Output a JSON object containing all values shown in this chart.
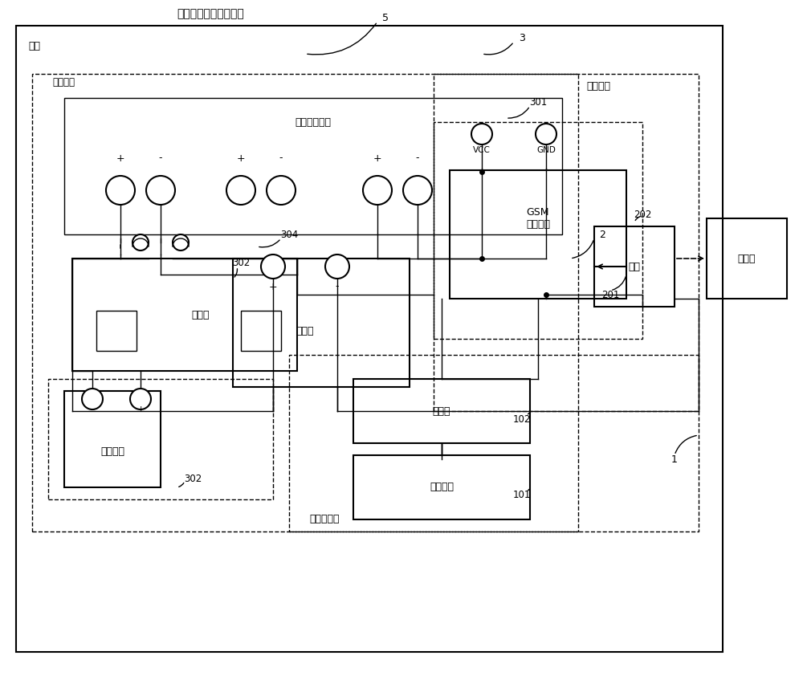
{
  "title": "跌落式熔断器监测装置",
  "bg_color": "#ffffff",
  "line_color": "#000000",
  "labels": {
    "title": "跌落式熔断器监测装置",
    "label5": "5",
    "label3": "3",
    "label2": "2",
    "label1": "1",
    "label301": "301",
    "label302a": "302",
    "label302b": "302",
    "label304": "304",
    "label201": "201",
    "label202": "202",
    "label102": "102",
    "label101": "101",
    "housing": "壳体",
    "power_module": "电源模块",
    "solar_controller": "太阳能控制器",
    "circuit_breaker": "断路器",
    "battery": "蓄电池",
    "solar_panel": "太阳能板",
    "alarm_module": "报警模块",
    "gsm_unit": "GSM\n报警单元",
    "antenna": "天线",
    "monitoring_station": "监测站",
    "relay": "继电器",
    "mercury_switch": "水银开关",
    "position_sensor": "位置传感器",
    "vcc": "VCC",
    "gnd": "GND"
  }
}
